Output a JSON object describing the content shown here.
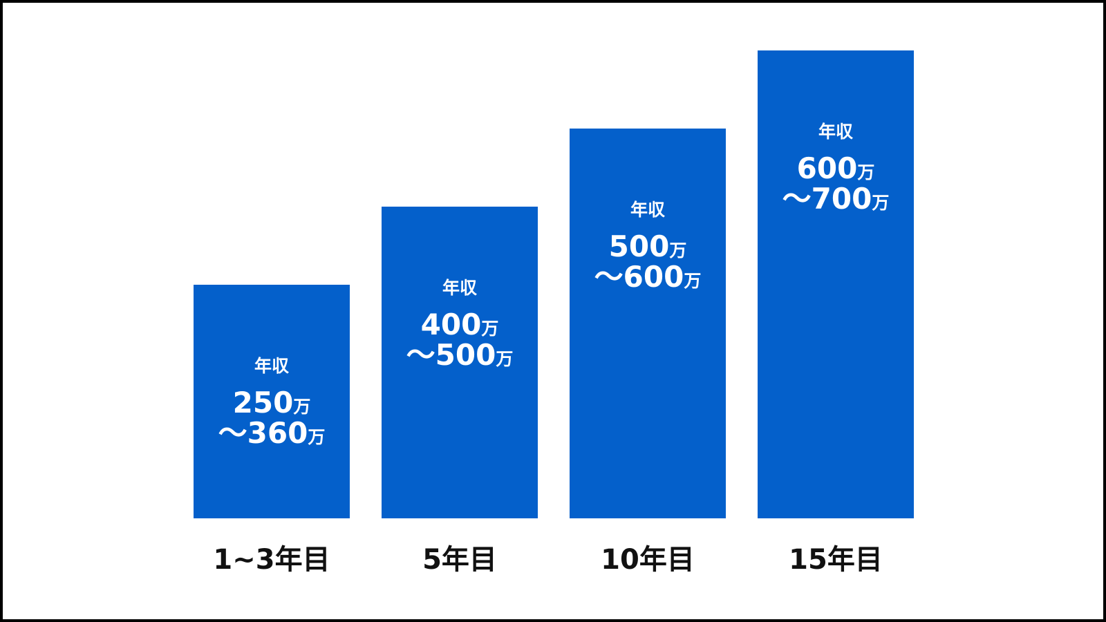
{
  "bars": [
    {
      "category": "1~3年目",
      "heading": "年収",
      "from": "250",
      "to": "～360",
      "unit": "万"
    },
    {
      "category": "5年目",
      "heading": "年収",
      "from": "400",
      "to": "～500",
      "unit": "万"
    },
    {
      "category": "10年目",
      "heading": "年収",
      "from": "500",
      "to": "～600",
      "unit": "万"
    },
    {
      "category": "15年目",
      "heading": "年収",
      "from": "600",
      "to": "～700",
      "unit": "万"
    }
  ]
}
